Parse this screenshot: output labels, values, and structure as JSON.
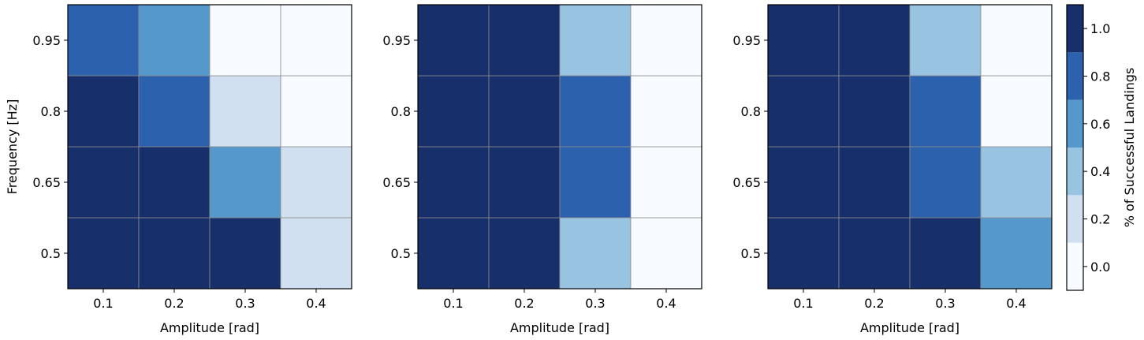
{
  "chart_data": [
    {
      "type": "heatmap",
      "xlabel": "Amplitude [rad]",
      "ylabel": "Frequency [Hz]",
      "x_categories": [
        "0.1",
        "0.2",
        "0.3",
        "0.4"
      ],
      "y_categories": [
        "0.5",
        "0.65",
        "0.8",
        "0.95"
      ],
      "values": [
        [
          1.0,
          1.0,
          1.0,
          0.2
        ],
        [
          1.0,
          1.0,
          0.6,
          0.2
        ],
        [
          1.0,
          0.8,
          0.2,
          0.0
        ],
        [
          0.8,
          0.6,
          0.0,
          0.0
        ]
      ]
    },
    {
      "type": "heatmap",
      "xlabel": "Amplitude [rad]",
      "ylabel": "",
      "x_categories": [
        "0.1",
        "0.2",
        "0.3",
        "0.4"
      ],
      "y_categories": [
        "0.5",
        "0.65",
        "0.8",
        "0.95"
      ],
      "values": [
        [
          1.0,
          1.0,
          0.4,
          0.0
        ],
        [
          1.0,
          1.0,
          0.8,
          0.0
        ],
        [
          1.0,
          1.0,
          0.8,
          0.0
        ],
        [
          1.0,
          1.0,
          0.4,
          0.0
        ]
      ]
    },
    {
      "type": "heatmap",
      "xlabel": "Amplitude [rad]",
      "ylabel": "",
      "x_categories": [
        "0.1",
        "0.2",
        "0.3",
        "0.4"
      ],
      "y_categories": [
        "0.5",
        "0.65",
        "0.8",
        "0.95"
      ],
      "values": [
        [
          1.0,
          1.0,
          1.0,
          0.6
        ],
        [
          1.0,
          1.0,
          0.8,
          0.4
        ],
        [
          1.0,
          1.0,
          0.8,
          0.0
        ],
        [
          1.0,
          1.0,
          0.4,
          0.0
        ]
      ]
    }
  ],
  "colorbar": {
    "label": "% of Successful Landings",
    "ticks": [
      "0.0",
      "0.2",
      "0.4",
      "0.6",
      "0.8",
      "1.0"
    ],
    "range": [
      -0.1,
      1.1
    ],
    "bins": [
      {
        "value": 0.0,
        "color": "#f7fbff"
      },
      {
        "value": 0.2,
        "color": "#d0e0f1"
      },
      {
        "value": 0.4,
        "color": "#99c4e1"
      },
      {
        "value": 0.6,
        "color": "#5598cb"
      },
      {
        "value": 0.8,
        "color": "#2c62ad"
      },
      {
        "value": 1.0,
        "color": "#172f6b"
      }
    ]
  }
}
